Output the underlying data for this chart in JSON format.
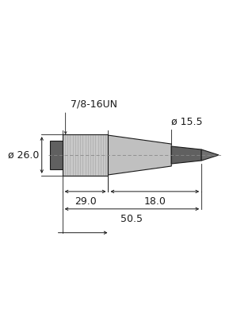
{
  "bg_color": "#ffffff",
  "line_color": "#1a1a1a",
  "dim_color": "#1a1a1a",
  "nut_fill": "#c8c8c8",
  "nut_line": "#aaaaaa",
  "body_fill": "#c0c0c0",
  "back_fill": "#606060",
  "cable_fill": "#606060",
  "tip_fill": "#707070",
  "center_dash_color": "#888888",
  "label_7816UN": "7/8-16UN",
  "label_d26": "ø 26.0",
  "label_d155": "ø 15.5",
  "label_29": "29.0",
  "label_18": "18.0",
  "label_505": "50.5",
  "font_size": 9
}
